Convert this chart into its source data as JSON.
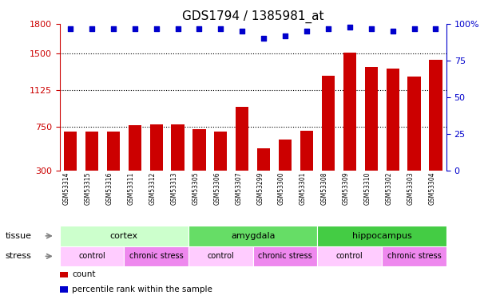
{
  "title": "GDS1794 / 1385981_at",
  "samples": [
    "GSM53314",
    "GSM53315",
    "GSM53316",
    "GSM53311",
    "GSM53312",
    "GSM53313",
    "GSM53305",
    "GSM53306",
    "GSM53307",
    "GSM53299",
    "GSM53300",
    "GSM53301",
    "GSM53308",
    "GSM53309",
    "GSM53310",
    "GSM53302",
    "GSM53303",
    "GSM53304"
  ],
  "counts": [
    700,
    695,
    700,
    760,
    770,
    770,
    720,
    700,
    950,
    530,
    620,
    710,
    1270,
    1510,
    1360,
    1340,
    1260,
    1430
  ],
  "percentiles": [
    97,
    97,
    97,
    97,
    97,
    97,
    97,
    97,
    95,
    90,
    92,
    95,
    97,
    98,
    97,
    95,
    97,
    97
  ],
  "ylim_left": [
    300,
    1800
  ],
  "ylim_right": [
    0,
    100
  ],
  "yticks_left": [
    300,
    750,
    1125,
    1500,
    1800
  ],
  "yticks_right": [
    0,
    25,
    50,
    75,
    100
  ],
  "hlines": [
    750,
    1125,
    1500
  ],
  "bar_color": "#cc0000",
  "dot_color": "#0000cc",
  "tissue_groups": [
    {
      "label": "cortex",
      "start": 0,
      "end": 6,
      "color": "#ccffcc"
    },
    {
      "label": "amygdala",
      "start": 6,
      "end": 12,
      "color": "#66dd66"
    },
    {
      "label": "hippocampus",
      "start": 12,
      "end": 18,
      "color": "#44cc44"
    }
  ],
  "stress_groups": [
    {
      "label": "control",
      "start": 0,
      "end": 3,
      "color": "#ffccff"
    },
    {
      "label": "chronic stress",
      "start": 3,
      "end": 6,
      "color": "#ee88ee"
    },
    {
      "label": "control",
      "start": 6,
      "end": 9,
      "color": "#ffccff"
    },
    {
      "label": "chronic stress",
      "start": 9,
      "end": 12,
      "color": "#ee88ee"
    },
    {
      "label": "control",
      "start": 12,
      "end": 15,
      "color": "#ffccff"
    },
    {
      "label": "chronic stress",
      "start": 15,
      "end": 18,
      "color": "#ee88ee"
    }
  ],
  "left_axis_color": "#cc0000",
  "right_tick_color": "#0000cc",
  "legend_items": [
    {
      "label": "count",
      "color": "#cc0000"
    },
    {
      "label": "percentile rank within the sample",
      "color": "#0000cc"
    }
  ]
}
